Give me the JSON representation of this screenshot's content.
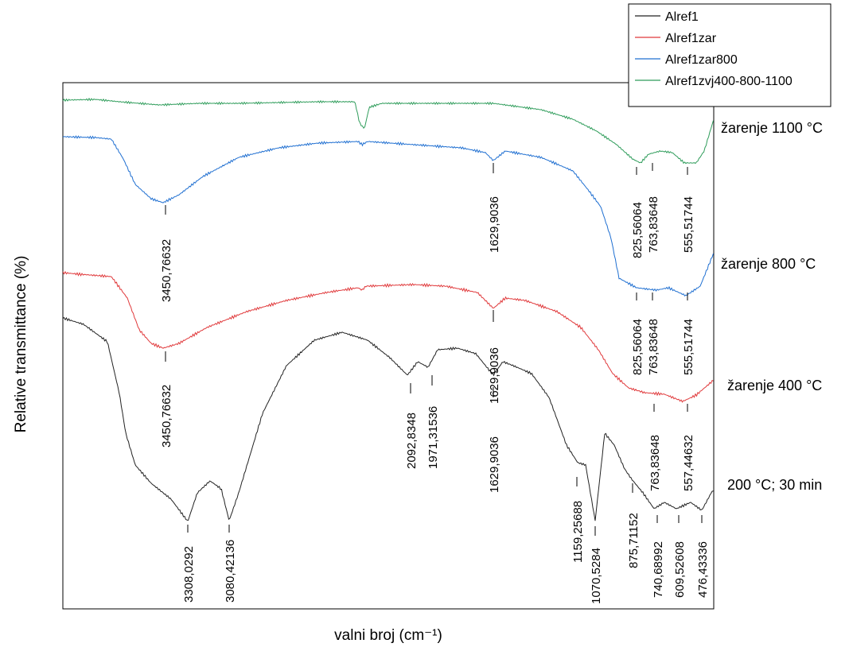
{
  "chart_data": {
    "type": "line",
    "xlabel": "valni broj (cm⁻¹)",
    "ylabel": "Relative transmittance (%)",
    "x_direction": "decreasing left to right",
    "xlim": [
      4000,
      400
    ],
    "grid": false,
    "legend_position": "top-right",
    "legend": [
      "Alref1",
      "Alref1zar",
      "Alref1zar800",
      "Alref1zvj400-800-1100"
    ],
    "series": [
      {
        "name": "Alref1",
        "color": "#222222",
        "side_label": "200 °C; 30 min",
        "peaks": [
          "3308,0292",
          "3080,42136",
          "2092,8348",
          "1971,31536",
          "1629,9036",
          "1159,25688",
          "1070,5284",
          "875,71152",
          "740,68992",
          "609,52608",
          "476,43336"
        ]
      },
      {
        "name": "Alref1zar",
        "color": "#e0393b",
        "side_label": "žarenje 400 °C",
        "peaks": [
          "3450,76632",
          "1629,9036",
          "763,83648",
          "557,44632"
        ]
      },
      {
        "name": "Alref1zar800",
        "color": "#1f6fd1",
        "side_label": "žarenje 800 °C",
        "peaks": [
          "3450,76632",
          "1629,9036",
          "825,56064",
          "763,83648",
          "555,51744"
        ]
      },
      {
        "name": "Alref1zvj400-800-1100",
        "color": "#2e9c5a",
        "side_label": "žarenje 1100 °C",
        "peaks": [
          "825,56064",
          "763,83648",
          "555,51744"
        ]
      }
    ]
  }
}
